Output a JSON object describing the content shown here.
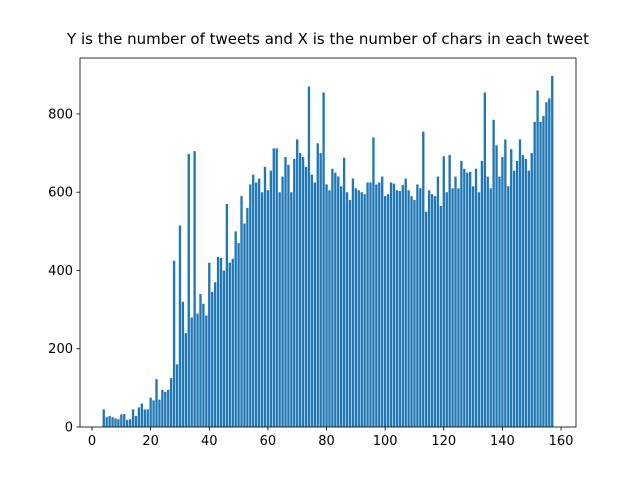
{
  "chart_data": {
    "type": "bar",
    "title": "Y is the number of tweets and X is the number of chars in each tweet",
    "color": "#1f77b4",
    "bar_width": 0.8,
    "x": [
      4,
      5,
      6,
      7,
      8,
      9,
      10,
      11,
      12,
      13,
      14,
      15,
      16,
      17,
      18,
      19,
      20,
      21,
      22,
      23,
      24,
      25,
      26,
      27,
      28,
      29,
      30,
      31,
      32,
      33,
      34,
      35,
      36,
      37,
      38,
      39,
      40,
      41,
      42,
      43,
      44,
      45,
      46,
      47,
      48,
      49,
      50,
      51,
      52,
      53,
      54,
      55,
      56,
      57,
      58,
      59,
      60,
      61,
      62,
      63,
      64,
      65,
      66,
      67,
      68,
      69,
      70,
      71,
      72,
      73,
      74,
      75,
      76,
      77,
      78,
      79,
      80,
      81,
      82,
      83,
      84,
      85,
      86,
      87,
      88,
      89,
      90,
      91,
      92,
      93,
      94,
      95,
      96,
      97,
      98,
      99,
      100,
      101,
      102,
      103,
      104,
      105,
      106,
      107,
      108,
      109,
      110,
      111,
      112,
      113,
      114,
      115,
      116,
      117,
      118,
      119,
      120,
      121,
      122,
      123,
      124,
      125,
      126,
      127,
      128,
      129,
      130,
      131,
      132,
      133,
      134,
      135,
      136,
      137,
      138,
      139,
      140,
      141,
      142,
      143,
      144,
      145,
      146,
      147,
      148,
      149,
      150,
      151,
      152,
      153,
      154,
      155,
      156,
      157
    ],
    "values": [
      45,
      25,
      28,
      25,
      22,
      20,
      32,
      33,
      18,
      20,
      45,
      28,
      50,
      60,
      45,
      45,
      75,
      68,
      122,
      70,
      95,
      90,
      95,
      125,
      425,
      160,
      515,
      320,
      240,
      698,
      280,
      705,
      290,
      340,
      315,
      285,
      420,
      345,
      370,
      435,
      432,
      400,
      570,
      420,
      430,
      500,
      470,
      590,
      520,
      560,
      620,
      645,
      625,
      635,
      600,
      665,
      605,
      655,
      712,
      712,
      600,
      640,
      690,
      670,
      600,
      685,
      735,
      700,
      690,
      665,
      870,
      645,
      625,
      725,
      700,
      855,
      620,
      605,
      660,
      650,
      640,
      615,
      688,
      600,
      580,
      635,
      610,
      605,
      600,
      595,
      625,
      625,
      740,
      620,
      625,
      640,
      590,
      595,
      625,
      622,
      605,
      603,
      618,
      635,
      605,
      590,
      580,
      620,
      610,
      755,
      550,
      605,
      595,
      590,
      640,
      565,
      692,
      600,
      695,
      610,
      640,
      610,
      680,
      660,
      650,
      652,
      615,
      660,
      600,
      680,
      855,
      640,
      610,
      785,
      720,
      640,
      690,
      735,
      615,
      710,
      655,
      680,
      735,
      695,
      685,
      655,
      700,
      780,
      860,
      780,
      795,
      830,
      840,
      897
    ],
    "xlim": [
      -4.1,
      165.1
    ],
    "ylim": [
      0,
      943
    ],
    "xticks": [
      0,
      20,
      40,
      60,
      80,
      100,
      120,
      140,
      160
    ],
    "yticks": [
      0,
      200,
      400,
      600,
      800
    ]
  }
}
